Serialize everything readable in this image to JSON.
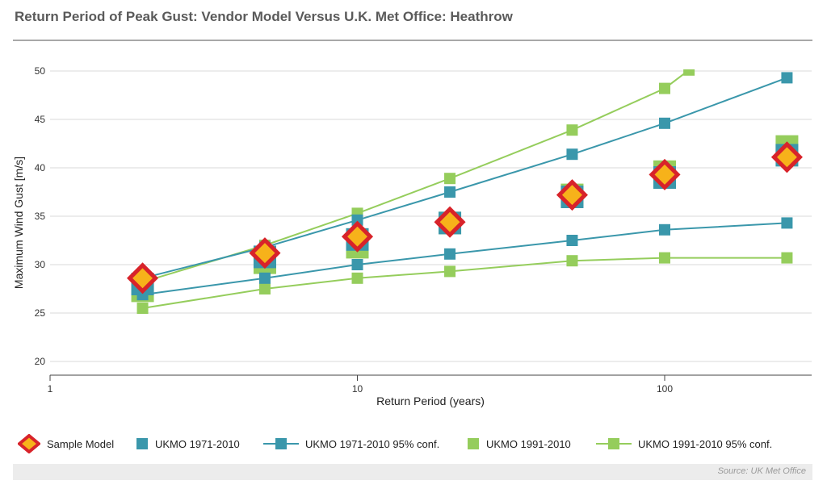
{
  "title": "Return Period of Peak Gust: Vendor Model Versus U.K. Met Office: Heathrow",
  "source": "Source: UK Met Office",
  "colors": {
    "sample_fill": "#f7b21a",
    "sample_border": "#d8232a",
    "ukmo_1971": "#3a97ab",
    "ukmo_1991": "#95cd5c",
    "grid": "#d9d9d9",
    "axis": "#444444"
  },
  "chart_data": {
    "type": "scatter",
    "title": "Return Period of Peak Gust: Vendor Model Versus U.K. Met Office: Heathrow",
    "xlabel": "Return Period (years)",
    "ylabel": "Maximum Wind Gust [m/s]",
    "xscale": "log",
    "xlim": [
      1,
      330
    ],
    "ylim": [
      20,
      50
    ],
    "xticks": [
      1,
      10,
      100
    ],
    "yticks": [
      20,
      25,
      30,
      35,
      40,
      45,
      50
    ],
    "grid": "horizontal",
    "legend": "bottom",
    "series": [
      {
        "name": "UKMO 1991-2010",
        "kind": "marker-large",
        "color_key": "ukmo_1991",
        "x": [
          2,
          5,
          10,
          20,
          50,
          100,
          250
        ],
        "y": [
          27.3,
          30.2,
          31.8,
          34.3,
          37.2,
          39.6,
          42.2
        ]
      },
      {
        "name": "UKMO 1971-2010",
        "kind": "marker-large",
        "color_key": "ukmo_1971",
        "x": [
          2,
          5,
          10,
          20,
          50,
          100,
          250
        ],
        "y": [
          28.0,
          30.8,
          32.6,
          34.3,
          37.0,
          39.0,
          41.3
        ]
      },
      {
        "name": "UKMO 1991-2010 95% conf.",
        "kind": "line",
        "color_key": "ukmo_1991",
        "x": [
          2,
          5,
          10,
          20,
          50,
          100,
          250
        ],
        "y": [
          25.5,
          27.5,
          28.6,
          29.3,
          30.4,
          30.7,
          30.7
        ],
        "x_upper": [
          2,
          5,
          10,
          20,
          50,
          100,
          120
        ],
        "y_upper": [
          28.2,
          32.0,
          35.3,
          38.9,
          43.9,
          48.2,
          50.1
        ]
      },
      {
        "name": "UKMO 1971-2010 95% conf.",
        "kind": "line",
        "color_key": "ukmo_1971",
        "x": [
          2,
          5,
          10,
          20,
          50,
          100,
          250
        ],
        "y": [
          26.9,
          28.6,
          30.0,
          31.1,
          32.5,
          33.6,
          34.3
        ],
        "x_upper": [
          2,
          5,
          10,
          20,
          50,
          100,
          250
        ],
        "y_upper": [
          28.6,
          31.8,
          34.6,
          37.5,
          41.4,
          44.6,
          49.3
        ]
      },
      {
        "name": "Sample Model",
        "kind": "diamond",
        "color_key": "sample",
        "x": [
          2,
          5,
          10,
          20,
          50,
          100,
          250
        ],
        "y": [
          28.6,
          31.2,
          32.9,
          34.4,
          37.2,
          39.3,
          41.1
        ]
      }
    ]
  },
  "legend_items": [
    {
      "label": "Sample Model",
      "symbol": "diamond"
    },
    {
      "label": "UKMO 1971-2010",
      "symbol": "square-1971"
    },
    {
      "label": "UKMO 1971-2010 95% conf.",
      "symbol": "line-1971"
    },
    {
      "label": "UKMO 1991-2010",
      "symbol": "square-1991"
    },
    {
      "label": "UKMO 1991-2010 95% conf.",
      "symbol": "line-1991"
    }
  ]
}
